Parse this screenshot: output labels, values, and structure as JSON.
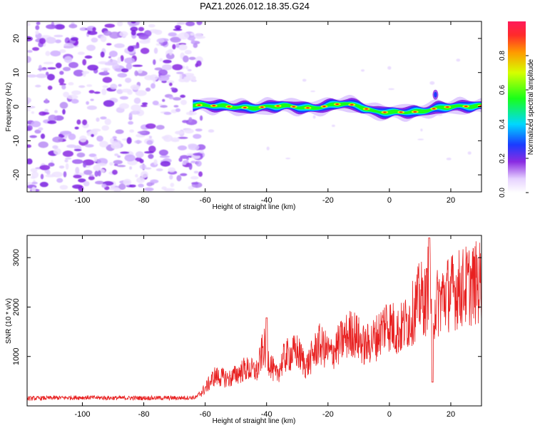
{
  "title": "PAZ1.2026.012.18.35.G24",
  "colors": {
    "snr_line": "#e82020",
    "ridge_core": "#e82020",
    "speckle": "#8a2be2"
  },
  "spectrogram": {
    "xlabel": "Height of straight line (km)",
    "ylabel": "Frequency (Hz)",
    "xlim": [
      -118,
      30
    ],
    "ylim": [
      -25,
      25
    ],
    "xticks": [
      -100,
      -80,
      -60,
      -40,
      -20,
      0,
      20
    ],
    "yticks": [
      -20,
      -10,
      0,
      10,
      20
    ],
    "noise_region_x": [
      -118,
      -61
    ],
    "ridge_start_x": -64,
    "ridge_center_hz": [
      [
        -64,
        0.5
      ],
      [
        -55,
        0.2
      ],
      [
        -45,
        -0.4
      ],
      [
        -35,
        0.3
      ],
      [
        -25,
        -0.5
      ],
      [
        -15,
        1.0
      ],
      [
        -10,
        0.2
      ],
      [
        -5,
        -1.5
      ],
      [
        0,
        -1.7
      ],
      [
        10,
        -1.5
      ],
      [
        15,
        -0.5
      ],
      [
        20,
        0.0
      ],
      [
        30,
        0.2
      ]
    ],
    "colorbar": {
      "label": "Normalized spectral amplitude",
      "ticks": [
        0.0,
        0.2,
        0.4,
        0.6,
        0.8
      ],
      "range": [
        0,
        1
      ]
    }
  },
  "chart_data": [
    {
      "type": "heatmap",
      "title": "PAZ1.2026.012.18.35.G24",
      "xlabel": "Height of straight line (km)",
      "ylabel": "Frequency (Hz)",
      "xlim": [
        -118,
        30
      ],
      "ylim": [
        -25,
        25
      ],
      "colorbar_label": "Normalized spectral amplitude",
      "colorbar_range": [
        0,
        1
      ]
    },
    {
      "type": "line",
      "xlabel": "Height of straight line (km)",
      "ylabel": "SNR (10 * v/v)",
      "xlim": [
        -118,
        30
      ],
      "ylim": [
        0,
        3450
      ],
      "xticks": [
        -100,
        -80,
        -60,
        -40,
        -20,
        0,
        20
      ],
      "yticks": [
        1000,
        2000,
        3000
      ],
      "envelope": [
        {
          "x": -118,
          "y": 150
        },
        {
          "x": -110,
          "y": 160
        },
        {
          "x": -100,
          "y": 170
        },
        {
          "x": -90,
          "y": 160
        },
        {
          "x": -80,
          "y": 160
        },
        {
          "x": -70,
          "y": 160
        },
        {
          "x": -63,
          "y": 170
        },
        {
          "x": -60,
          "y": 350
        },
        {
          "x": -57,
          "y": 600
        },
        {
          "x": -52,
          "y": 550
        },
        {
          "x": -47,
          "y": 750
        },
        {
          "x": -43,
          "y": 700
        },
        {
          "x": -41,
          "y": 1200
        },
        {
          "x": -37,
          "y": 600
        },
        {
          "x": -34,
          "y": 1000
        },
        {
          "x": -30,
          "y": 1100
        },
        {
          "x": -27,
          "y": 800
        },
        {
          "x": -23,
          "y": 1250
        },
        {
          "x": -19,
          "y": 1050
        },
        {
          "x": -15,
          "y": 1350
        },
        {
          "x": -12,
          "y": 1500
        },
        {
          "x": -8,
          "y": 1200
        },
        {
          "x": -4,
          "y": 1400
        },
        {
          "x": -1,
          "y": 1700
        },
        {
          "x": 3,
          "y": 1500
        },
        {
          "x": 7,
          "y": 1800
        },
        {
          "x": 10,
          "y": 2200
        },
        {
          "x": 12,
          "y": 2100
        },
        {
          "x": 13,
          "y": 2800
        },
        {
          "x": 14,
          "y": 1900
        },
        {
          "x": 15,
          "y": 2050
        },
        {
          "x": 18,
          "y": 2250
        },
        {
          "x": 22,
          "y": 2350
        },
        {
          "x": 26,
          "y": 2450
        },
        {
          "x": 30,
          "y": 2500
        }
      ],
      "notable_points": [
        {
          "x": 13,
          "y": 3400,
          "note": "peak"
        },
        {
          "x": 14,
          "y": 480,
          "note": "dip"
        },
        {
          "x": -40,
          "y": 1780,
          "note": "spike"
        }
      ]
    }
  ]
}
